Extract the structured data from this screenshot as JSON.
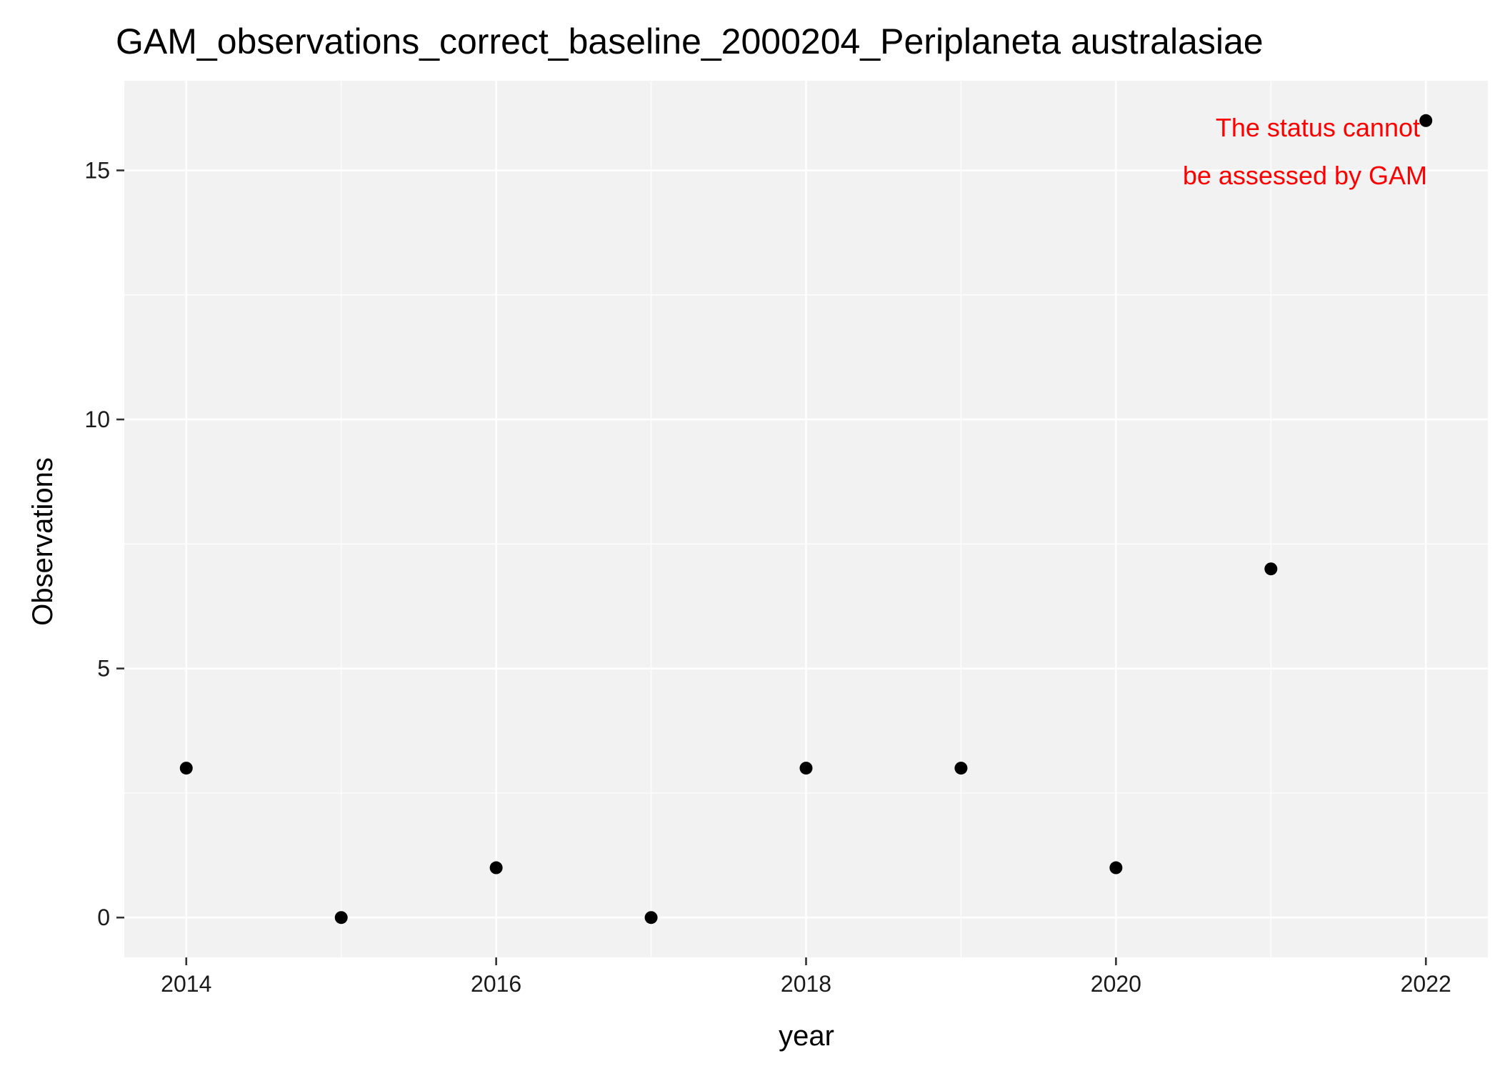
{
  "colors": {
    "panel_background": "#F2F2F2",
    "grid": "#FFFFFF",
    "points": "#000000",
    "annotation": "#FF0000"
  },
  "chart_data": {
    "type": "scatter",
    "title": "GAM_observations_correct_baseline_2000204_Periplaneta australasiae",
    "xlabel": "year",
    "ylabel": "Observations",
    "xlim": [
      2013.6,
      2022.4
    ],
    "ylim": [
      -0.8,
      16.8
    ],
    "xticks": [
      2014,
      2016,
      2018,
      2020,
      2022
    ],
    "yticks": [
      0,
      5,
      10,
      15
    ],
    "grid": true,
    "x": [
      2014,
      2015,
      2016,
      2017,
      2018,
      2019,
      2020,
      2021,
      2022
    ],
    "y": [
      3,
      0,
      1,
      0,
      3,
      3,
      1,
      7,
      16
    ],
    "annotation": {
      "lines": [
        "The status cannot",
        "be assessed by GAM"
      ]
    }
  }
}
